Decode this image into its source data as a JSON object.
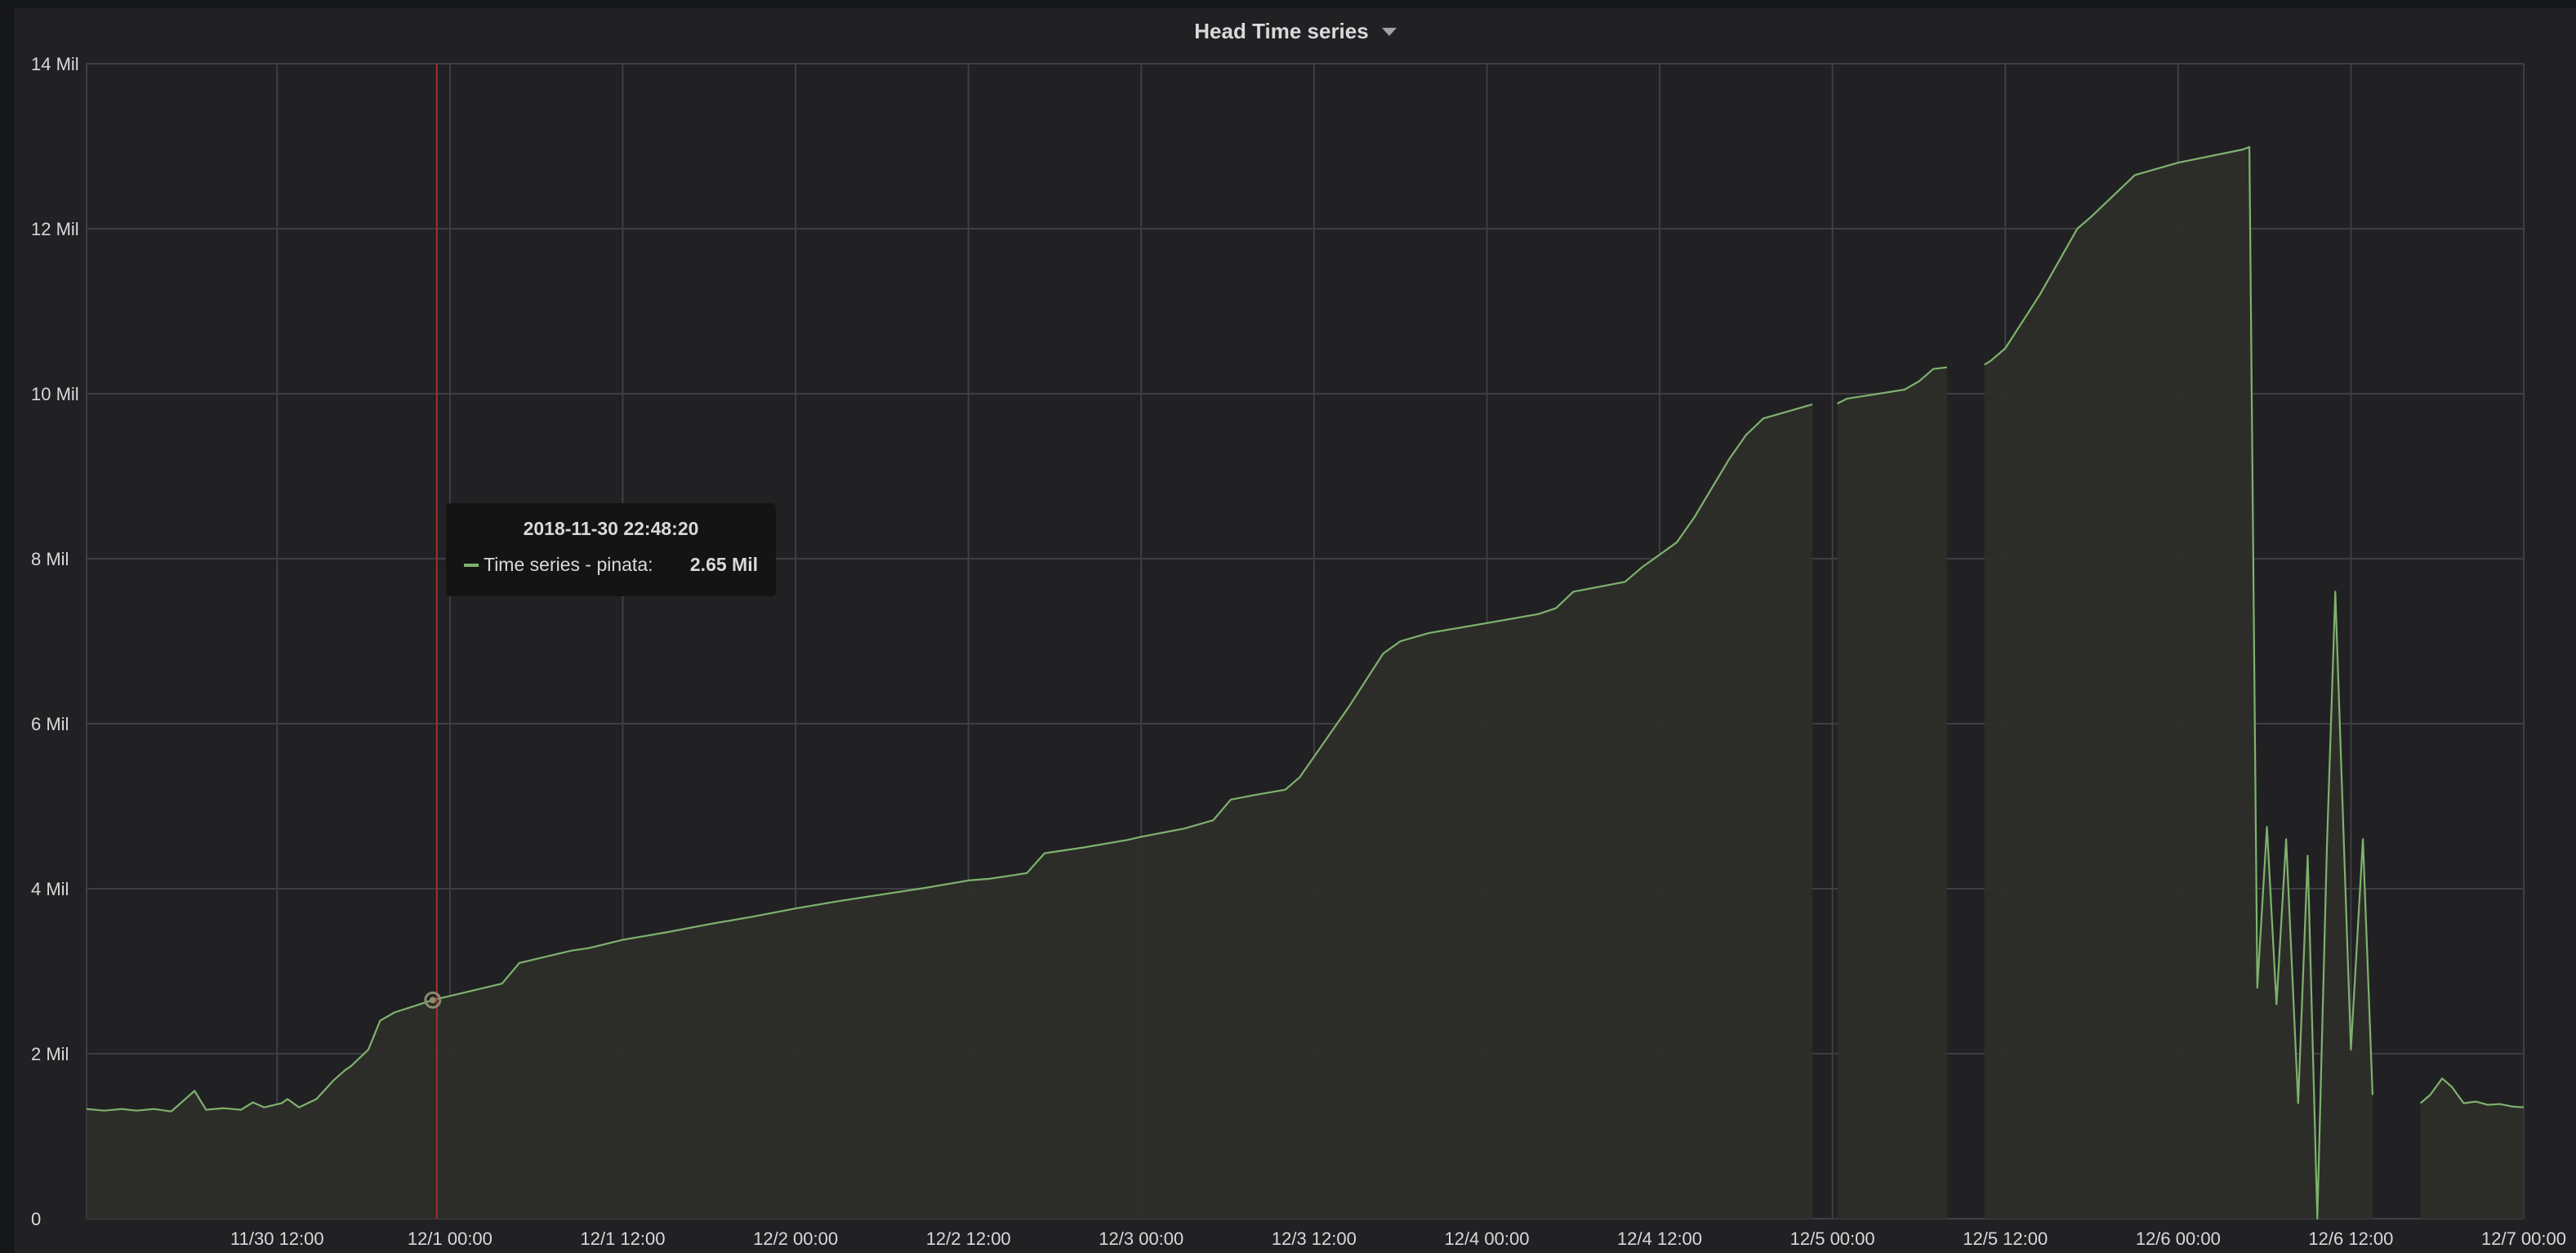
{
  "panel": {
    "title": "Head Time series"
  },
  "tooltip": {
    "time": "2018-11-30 22:48:20",
    "series_label": "Time series - pinata:",
    "value_label": "2.65 Mil"
  },
  "colors": {
    "panel_bg": "#212124",
    "grid": "#3e3f43",
    "series_line": "#7eb26d",
    "series_fill": "#2d2e2a",
    "crosshair": "#a03030",
    "text": "#d8d9da"
  },
  "chart_data": {
    "type": "area",
    "title": "Head Time series",
    "xlabel": "",
    "ylabel": "",
    "ylim": [
      0,
      14000000
    ],
    "xlim": [
      "2018-11-29 22:46",
      "2018-12-07 00:00"
    ],
    "grid": true,
    "legend": "none",
    "y_ticks": [
      {
        "value": 0,
        "label": "0"
      },
      {
        "value": 2000000,
        "label": "2 Mil"
      },
      {
        "value": 4000000,
        "label": "4 Mil"
      },
      {
        "value": 6000000,
        "label": "6 Mil"
      },
      {
        "value": 8000000,
        "label": "8 Mil"
      },
      {
        "value": 10000000,
        "label": "10 Mil"
      },
      {
        "value": 12000000,
        "label": "12 Mil"
      },
      {
        "value": 14000000,
        "label": "14 Mil"
      }
    ],
    "x_ticks": [
      {
        "value": "2018-11-30 12:00",
        "label": "11/30 12:00"
      },
      {
        "value": "2018-12-01 00:00",
        "label": "12/1 00:00"
      },
      {
        "value": "2018-12-01 12:00",
        "label": "12/1 12:00"
      },
      {
        "value": "2018-12-02 00:00",
        "label": "12/2 00:00"
      },
      {
        "value": "2018-12-02 12:00",
        "label": "12/2 12:00"
      },
      {
        "value": "2018-12-03 00:00",
        "label": "12/3 00:00"
      },
      {
        "value": "2018-12-03 12:00",
        "label": "12/3 12:00"
      },
      {
        "value": "2018-12-04 00:00",
        "label": "12/4 00:00"
      },
      {
        "value": "2018-12-04 12:00",
        "label": "12/4 12:00"
      },
      {
        "value": "2018-12-05 00:00",
        "label": "12/5 00:00"
      },
      {
        "value": "2018-12-05 12:00",
        "label": "12/5 12:00"
      },
      {
        "value": "2018-12-06 00:00",
        "label": "12/6 00:00"
      },
      {
        "value": "2018-12-06 12:00",
        "label": "12/6 12:00"
      },
      {
        "value": "2018-12-07 00:00",
        "label": "12/7 00:00"
      }
    ],
    "hover": {
      "x": "2018-11-30 22:48:20",
      "y": 2650000
    },
    "series": [
      {
        "name": "Time series - pinata",
        "segments": [
          [
            [
              "2018-11-29 22:46",
              1330000
            ],
            [
              "2018-11-30 00:00",
              1310000
            ],
            [
              "2018-11-30 01:12",
              1330000
            ],
            [
              "2018-11-30 02:14",
              1310000
            ],
            [
              "2018-11-30 03:27",
              1330000
            ],
            [
              "2018-11-30 04:39",
              1300000
            ],
            [
              "2018-11-30 06:16",
              1550000
            ],
            [
              "2018-11-30 07:04",
              1320000
            ],
            [
              "2018-11-30 08:16",
              1340000
            ],
            [
              "2018-11-30 09:29",
              1320000
            ],
            [
              "2018-11-30 10:19",
              1410000
            ],
            [
              "2018-11-30 11:06",
              1350000
            ],
            [
              "2018-11-30 12:19",
              1400000
            ],
            [
              "2018-11-30 12:43",
              1450000
            ],
            [
              "2018-11-30 13:31",
              1350000
            ],
            [
              "2018-11-30 14:44",
              1450000
            ],
            [
              "2018-11-30 15:56",
              1680000
            ],
            [
              "2018-11-30 16:43",
              1800000
            ],
            [
              "2018-11-30 17:08",
              1850000
            ],
            [
              "2018-11-30 18:20",
              2050000
            ],
            [
              "2018-11-30 19:09",
              2400000
            ],
            [
              "2018-11-30 20:09",
              2500000
            ],
            [
              "2018-11-30 21:34",
              2580000
            ],
            [
              "2018-11-30 22:48",
              2650000
            ],
            [
              "2018-12-01 00:00",
              2700000
            ],
            [
              "2018-12-01 01:12",
              2750000
            ],
            [
              "2018-12-01 02:25",
              2800000
            ],
            [
              "2018-12-01 03:37",
              2850000
            ],
            [
              "2018-12-01 04:49",
              3100000
            ],
            [
              "2018-12-01 06:02",
              3150000
            ],
            [
              "2018-12-01 07:14",
              3200000
            ],
            [
              "2018-12-01 08:26",
              3250000
            ],
            [
              "2018-12-01 09:39",
              3280000
            ],
            [
              "2018-12-01 12:00",
              3380000
            ],
            [
              "2018-12-01 15:00",
              3470000
            ],
            [
              "2018-12-01 18:00",
              3570000
            ],
            [
              "2018-12-01 21:00",
              3660000
            ],
            [
              "2018-12-02 00:00",
              3760000
            ],
            [
              "2018-12-02 03:00",
              3850000
            ],
            [
              "2018-12-02 06:00",
              3930000
            ],
            [
              "2018-12-02 09:00",
              4010000
            ],
            [
              "2018-12-02 12:00",
              4100000
            ],
            [
              "2018-12-02 13:26",
              4120000
            ],
            [
              "2018-12-02 15:00",
              4160000
            ],
            [
              "2018-12-02 16:04",
              4190000
            ],
            [
              "2018-12-02 17:17",
              4430000
            ],
            [
              "2018-12-02 20:00",
              4500000
            ],
            [
              "2018-12-02 23:00",
              4590000
            ],
            [
              "2018-12-03 00:00",
              4630000
            ],
            [
              "2018-12-03 03:00",
              4730000
            ],
            [
              "2018-12-03 05:00",
              4830000
            ],
            [
              "2018-12-03 06:13",
              5080000
            ],
            [
              "2018-12-03 08:00",
              5140000
            ],
            [
              "2018-12-03 10:00",
              5200000
            ],
            [
              "2018-12-03 11:00",
              5350000
            ],
            [
              "2018-12-03 12:00",
              5600000
            ],
            [
              "2018-12-03 13:00",
              5850000
            ],
            [
              "2018-12-03 14:24",
              6200000
            ],
            [
              "2018-12-03 16:48",
              6850000
            ],
            [
              "2018-12-03 18:00",
              7000000
            ],
            [
              "2018-12-03 20:00",
              7100000
            ],
            [
              "2018-12-04 00:00",
              7220000
            ],
            [
              "2018-12-04 03:36",
              7330000
            ],
            [
              "2018-12-04 04:48",
              7400000
            ],
            [
              "2018-12-04 06:00",
              7600000
            ],
            [
              "2018-12-04 09:36",
              7720000
            ],
            [
              "2018-12-04 10:48",
              7900000
            ],
            [
              "2018-12-04 12:00",
              8050000
            ],
            [
              "2018-12-04 13:12",
              8200000
            ],
            [
              "2018-12-04 14:24",
              8500000
            ],
            [
              "2018-12-04 16:48",
              9200000
            ],
            [
              "2018-12-04 18:00",
              9500000
            ],
            [
              "2018-12-04 19:12",
              9700000
            ],
            [
              "2018-12-04 22:36",
              9870000
            ]
          ],
          [
            [
              "2018-12-05 00:20",
              9880000
            ],
            [
              "2018-12-05 01:00",
              9940000
            ],
            [
              "2018-12-05 05:00",
              10050000
            ],
            [
              "2018-12-05 06:00",
              10150000
            ],
            [
              "2018-12-05 07:00",
              10300000
            ],
            [
              "2018-12-05 07:57",
              10320000
            ]
          ],
          [
            [
              "2018-12-05 10:33",
              10350000
            ],
            [
              "2018-12-05 11:00",
              10400000
            ],
            [
              "2018-12-05 12:00",
              10550000
            ],
            [
              "2018-12-05 14:24",
              11200000
            ],
            [
              "2018-12-05 17:00",
              12000000
            ],
            [
              "2018-12-05 18:00",
              12150000
            ],
            [
              "2018-12-05 21:00",
              12650000
            ],
            [
              "2018-12-06 00:00",
              12800000
            ],
            [
              "2018-12-06 04:30",
              12960000
            ],
            [
              "2018-12-06 04:57",
              12990000
            ],
            [
              "2018-12-06 05:30",
              2800000
            ],
            [
              "2018-12-06 06:10",
              4750000
            ],
            [
              "2018-12-06 06:50",
              2600000
            ],
            [
              "2018-12-06 07:30",
              4600000
            ],
            [
              "2018-12-06 08:20",
              1400000
            ],
            [
              "2018-12-06 09:00",
              4400000
            ],
            [
              "2018-12-06 09:40",
              0
            ],
            [
              "2018-12-06 10:20",
              4500000
            ],
            [
              "2018-12-06 10:55",
              7600000
            ],
            [
              "2018-12-06 12:00",
              2050000
            ],
            [
              "2018-12-06 12:50",
              4600000
            ],
            [
              "2018-12-06 13:30",
              1500000
            ]
          ],
          [
            [
              "2018-12-06 16:50",
              1400000
            ],
            [
              "2018-12-06 17:30",
              1500000
            ],
            [
              "2018-12-06 18:20",
              1700000
            ],
            [
              "2018-12-06 19:00",
              1600000
            ],
            [
              "2018-12-06 19:50",
              1400000
            ],
            [
              "2018-12-06 20:40",
              1420000
            ],
            [
              "2018-12-06 21:30",
              1380000
            ],
            [
              "2018-12-06 22:20",
              1390000
            ],
            [
              "2018-12-06 23:10",
              1360000
            ],
            [
              "2018-12-07 00:00",
              1350000
            ]
          ]
        ]
      }
    ]
  }
}
